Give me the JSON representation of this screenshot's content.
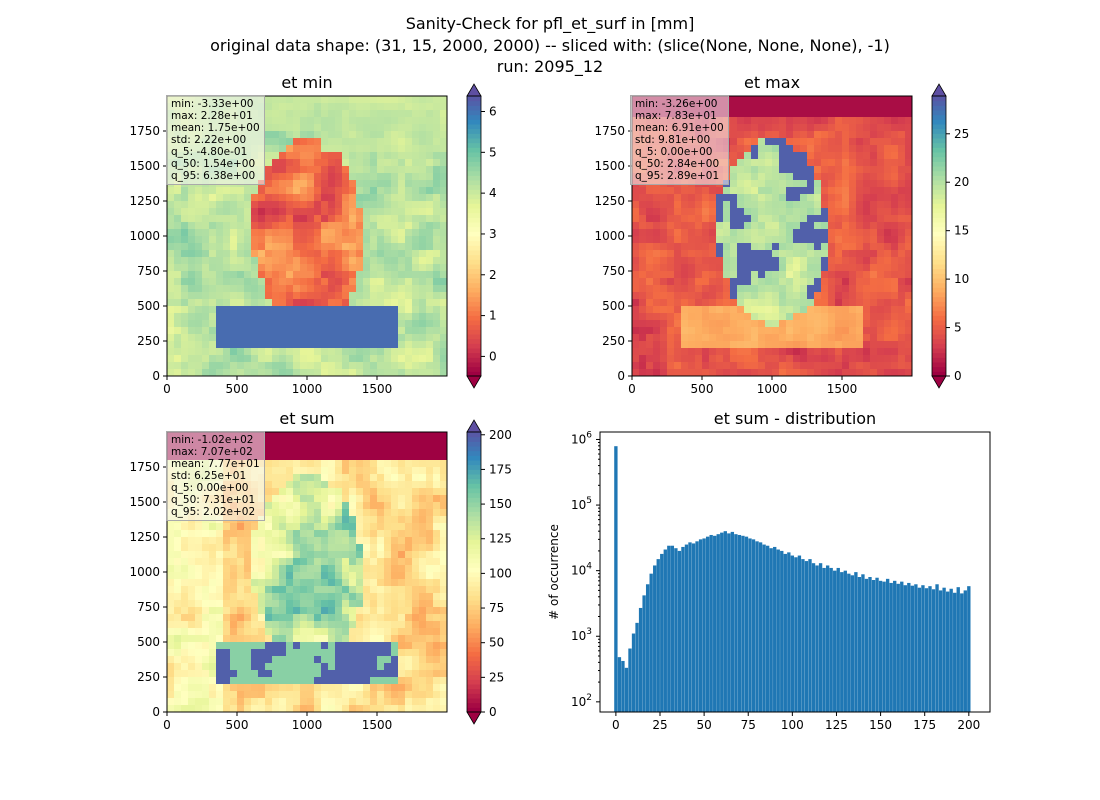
{
  "figure": {
    "title_line1": "Sanity-Check for pfl_et_surf in [mm]",
    "title_line2": "original data shape: (31, 15, 2000, 2000) -- sliced with: (slice(None, None, None), -1)",
    "title_line3": "run: 2095_12"
  },
  "colormap": "Spectral",
  "chart_data": [
    {
      "type": "heatmap",
      "title": "et min",
      "xlim": [
        0,
        2000
      ],
      "ylim": [
        0,
        2000
      ],
      "xticks": [
        "0",
        "500",
        "1000",
        "1500"
      ],
      "yticks": [
        "0",
        "250",
        "500",
        "750",
        "1000",
        "1250",
        "1500",
        "1750"
      ],
      "colorbar": {
        "range": [
          -0.48,
          6.38
        ],
        "ticks": [
          "0",
          "1",
          "2",
          "3",
          "4",
          "5",
          "6"
        ],
        "extend": "both"
      },
      "stats": [
        "min: -3.33e+00",
        "max: 2.28e+01",
        "mean: 1.75e+00",
        "std: 2.22e+00",
        "q_5: -4.80e-01",
        "q_50: 1.54e+00",
        "q_95: 6.38e+00"
      ]
    },
    {
      "type": "heatmap",
      "title": "et max",
      "xlim": [
        0,
        2000
      ],
      "ylim": [
        0,
        2000
      ],
      "xticks": [
        "0",
        "500",
        "1000",
        "1500"
      ],
      "yticks": [
        "0",
        "250",
        "500",
        "750",
        "1000",
        "1250",
        "1500",
        "1750"
      ],
      "colorbar": {
        "range": [
          0,
          28.9
        ],
        "ticks": [
          "0",
          "5",
          "10",
          "15",
          "20",
          "25"
        ],
        "extend": "both"
      },
      "stats": [
        "min: -3.26e+00",
        "max: 7.83e+01",
        "mean: 6.91e+00",
        "std: 9.81e+00",
        "q_5: 0.00e+00",
        "q_50: 2.84e+00",
        "q_95: 2.89e+01"
      ]
    },
    {
      "type": "heatmap",
      "title": "et sum",
      "xlim": [
        0,
        2000
      ],
      "ylim": [
        0,
        2000
      ],
      "xticks": [
        "0",
        "500",
        "1000",
        "1500"
      ],
      "yticks": [
        "0",
        "250",
        "500",
        "750",
        "1000",
        "1250",
        "1500",
        "1750"
      ],
      "colorbar": {
        "range": [
          0,
          202
        ],
        "ticks": [
          "0",
          "25",
          "50",
          "75",
          "100",
          "125",
          "150",
          "175",
          "200"
        ],
        "extend": "both"
      },
      "stats": [
        "min: -1.02e+02",
        "max: 7.07e+02",
        "mean: 7.77e+01",
        "std: 6.25e+01",
        "q_5: 0.00e+00",
        "q_50: 7.31e+01",
        "q_95: 2.02e+02"
      ]
    },
    {
      "type": "bar",
      "title": "et sum - distribution",
      "xlabel": "",
      "ylabel": "# of occurrence",
      "yscale": "log",
      "xlim": [
        -9,
        212
      ],
      "ylim": [
        70,
        1300000
      ],
      "color": "#1f77b4",
      "xticks": [
        "0",
        "25",
        "50",
        "75",
        "100",
        "125",
        "150",
        "175",
        "200"
      ],
      "yticks": [
        "10^2",
        "10^3",
        "10^4",
        "10^5",
        "10^6"
      ],
      "x": [
        0,
        2,
        4,
        6,
        8,
        10,
        12,
        14,
        16,
        18,
        20,
        22,
        24,
        26,
        28,
        30,
        32,
        34,
        36,
        38,
        40,
        42,
        44,
        46,
        48,
        50,
        52,
        54,
        56,
        58,
        60,
        62,
        64,
        66,
        68,
        70,
        72,
        74,
        76,
        78,
        80,
        82,
        84,
        86,
        88,
        90,
        92,
        94,
        96,
        98,
        100,
        102,
        104,
        106,
        108,
        110,
        112,
        114,
        116,
        118,
        120,
        122,
        124,
        126,
        128,
        130,
        132,
        134,
        136,
        138,
        140,
        142,
        144,
        146,
        148,
        150,
        152,
        154,
        156,
        158,
        160,
        162,
        164,
        166,
        168,
        170,
        172,
        174,
        176,
        178,
        180,
        182,
        184,
        186,
        188,
        190,
        192,
        194,
        196,
        198,
        200
      ],
      "values": [
        790000,
        480,
        420,
        330,
        650,
        1100,
        1600,
        2700,
        4200,
        6200,
        9000,
        12000,
        15000,
        18000,
        21000,
        24000,
        24000,
        22000,
        20000,
        23000,
        25000,
        27000,
        26000,
        28000,
        30000,
        31000,
        33000,
        35000,
        34000,
        36000,
        38000,
        40000,
        37000,
        39000,
        36000,
        35000,
        34000,
        33000,
        31000,
        30000,
        28000,
        27000,
        25000,
        24000,
        22000,
        23000,
        21000,
        20000,
        18000,
        19000,
        17000,
        16000,
        17000,
        15000,
        14000,
        15000,
        13000,
        12000,
        13000,
        11000,
        12000,
        11000,
        10000,
        11000,
        9500,
        10000,
        9000,
        8500,
        9500,
        8000,
        8800,
        7500,
        8000,
        7200,
        7800,
        7000,
        6800,
        7500,
        6500,
        7000,
        6300,
        6800,
        6000,
        6500,
        5900,
        6200,
        5500,
        6000,
        5400,
        5800,
        5200,
        6200,
        5000,
        5500,
        4800,
        5300,
        4600,
        5600,
        4500,
        5000,
        5800
      ]
    }
  ]
}
